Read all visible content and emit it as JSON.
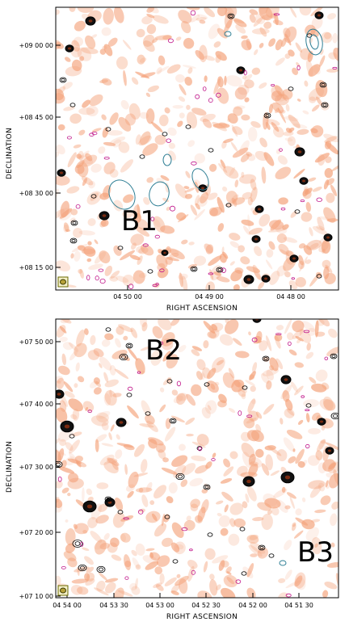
{
  "panels": [
    {
      "id": "top",
      "region_label": "B1",
      "xlabel": "RIGHT ASCENSION",
      "ylabel": "DECLINATION",
      "xticks": [
        "04 50 00",
        "04 49 00",
        "04 48 00"
      ],
      "yticks": [
        "+09 00 00",
        "+08 45 00",
        "+08 30 00",
        "+08 15 00"
      ]
    },
    {
      "id": "bottom",
      "region_labels": [
        "B2",
        "B3"
      ],
      "xlabel": "RIGHT ASCENSION",
      "ylabel": "DECLINATION",
      "xticks": [
        "04 54 00",
        "04 53 30",
        "04 53 00",
        "04 52 30",
        "04 52 00",
        "04 51 30"
      ],
      "yticks": [
        "+07 50 00",
        "+07 40 00",
        "+07 30 00",
        "+07 20 00",
        "+07 10 00"
      ]
    }
  ],
  "colors": {
    "background_emission": "#f4a27a",
    "black_contours": "#000000",
    "blue_contours": "#2f7f95",
    "magenta_contours": "#c0168a",
    "beam_fill": "#b7a23a"
  }
}
